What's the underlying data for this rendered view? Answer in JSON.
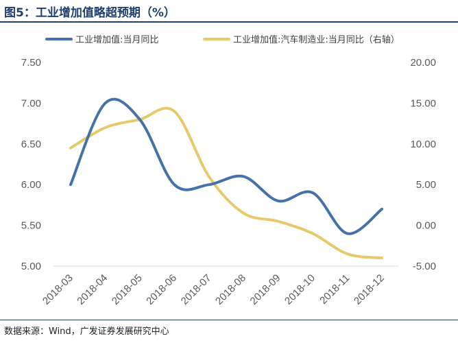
{
  "title": "图5：工业增加值略超预期（%）",
  "source": "数据来源：Wind，广发证券发展研究中心",
  "chart_data": {
    "type": "line",
    "categories": [
      "2018-03",
      "2018-04",
      "2018-05",
      "2018-06",
      "2018-07",
      "2018-08",
      "2018-09",
      "2018-10",
      "2018-11",
      "2018-12"
    ],
    "series": [
      {
        "name": "工业增加值:当月同比",
        "axis": "left",
        "color": "#4472a8",
        "values": [
          6.0,
          7.0,
          6.8,
          6.0,
          6.0,
          6.1,
          5.8,
          5.9,
          5.4,
          5.7
        ]
      },
      {
        "name": "工业增加值:汽车制造业:当月同比（右轴）",
        "axis": "right",
        "color": "#e6c96b",
        "values": [
          9.5,
          12.0,
          13.0,
          14.0,
          6.0,
          1.5,
          0.5,
          -1.0,
          -3.5,
          -4.0
        ]
      }
    ],
    "y_left": {
      "min": 5.0,
      "max": 7.5,
      "ticks": [
        "5.00",
        "5.50",
        "6.00",
        "6.50",
        "7.00",
        "7.50"
      ]
    },
    "y_right": {
      "min": -5.0,
      "max": 20.0,
      "ticks": [
        "-5.00",
        "0.00",
        "5.00",
        "10.00",
        "15.00",
        "20.00"
      ],
      "negative_color": "#e00000"
    },
    "grid": false,
    "legend": "top"
  }
}
